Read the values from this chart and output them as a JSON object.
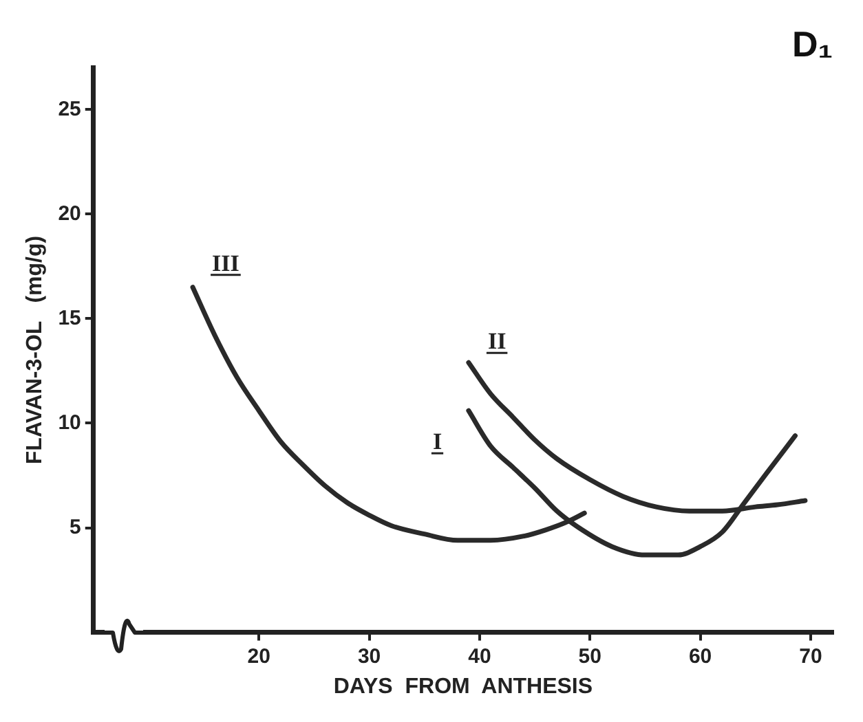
{
  "chart_data": {
    "type": "line",
    "title": "D₁",
    "xlabel": "DAYS  FROM  ANTHESIS",
    "ylabel": "FLAVAN-3-OL   (mg/g)",
    "xlim": [
      5,
      72
    ],
    "xticks": [
      20,
      30,
      40,
      50,
      60,
      70
    ],
    "ylim": [
      0,
      27
    ],
    "yticks": [
      5,
      10,
      15,
      20,
      25
    ],
    "grid": false,
    "legend": false,
    "marker": "none",
    "line_style": "solid",
    "series": [
      {
        "name": "I",
        "color": "#2a2a2a",
        "x": [
          39,
          41,
          43,
          45,
          47,
          49,
          52,
          55,
          58,
          60,
          62,
          64,
          66,
          68.6
        ],
        "values": [
          10.6,
          8.9,
          7.9,
          6.9,
          5.8,
          5,
          4.1,
          3.7,
          3.7,
          4.1,
          4.8,
          6.2,
          7.6,
          9.4
        ]
      },
      {
        "name": "II",
        "color": "#2a2a2a",
        "x": [
          39,
          41,
          43,
          45,
          47,
          50,
          53,
          56,
          59,
          62,
          65,
          67,
          69.5
        ],
        "values": [
          12.9,
          11.4,
          10.3,
          9.2,
          8.3,
          7.3,
          6.5,
          6,
          5.8,
          5.8,
          6,
          6.1,
          6.3
        ]
      },
      {
        "name": "III",
        "color": "#2a2a2a",
        "x": [
          14,
          16,
          18,
          20,
          22,
          24,
          26,
          28,
          30,
          32,
          35,
          38,
          41,
          44,
          46,
          48,
          49.5
        ],
        "values": [
          16.5,
          14.2,
          12.2,
          10.6,
          9.1,
          8,
          7,
          6.2,
          5.6,
          5.1,
          4.7,
          4.4,
          4.4,
          4.6,
          4.9,
          5.3,
          5.7
        ]
      }
    ]
  }
}
